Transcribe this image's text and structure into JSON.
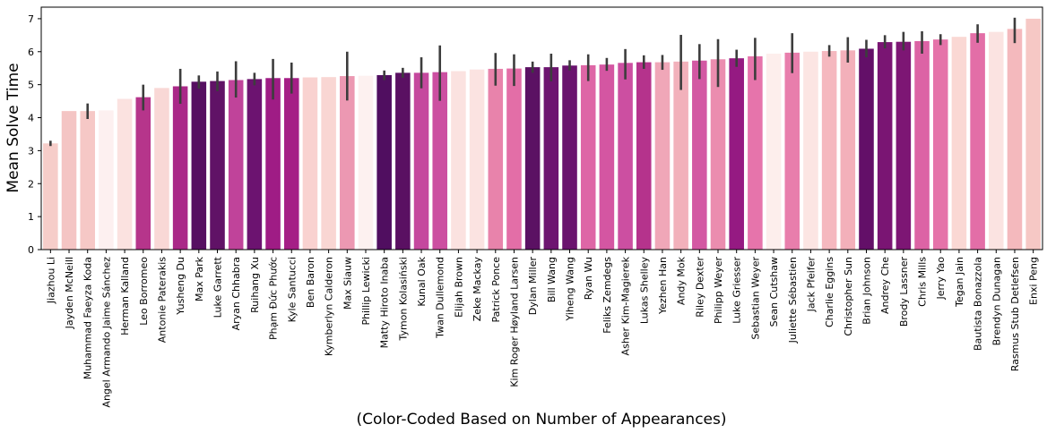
{
  "chart_data": {
    "type": "bar",
    "title": "",
    "xlabel": "(Color-Coded Based on Number of Appearances)",
    "ylabel": "Mean Solve Time",
    "ylim": [
      0,
      7.35
    ],
    "yticks": [
      0,
      1,
      2,
      3,
      4,
      5,
      6,
      7
    ],
    "grid": false,
    "legend": "none",
    "categories": [
      "Jiazhou Li",
      "Jayden McNeill",
      "Muhammad Faeyza Koda",
      "Angel Armando Jaime Sánchez",
      "Herman Kalland",
      "Leo Borromeo",
      "Antonie Paterakis",
      "Yusheng Du",
      "Max Park",
      "Luke Garrett",
      "Aryan Chhabra",
      "Ruihang Xu",
      "Phạm Đức Phước",
      "Kyle Santucci",
      "Ben Baron",
      "Kymberlyn Calderon",
      "Max Siauw",
      "Phillip Lewicki",
      "Matty Hiroto Inaba",
      "Tymon Kolasiński",
      "Kunal Oak",
      "Twan Dullemond",
      "Elijah Brown",
      "Zeke Mackay",
      "Patrick Ponce",
      "Kim Roger Høyland Larsen",
      "Dylan Miller",
      "Bill Wang",
      "Yiheng Wang",
      "Ryan Wu",
      "Feliks Zemdegs",
      "Asher Kim-Magierek",
      "Lukas Shelley",
      "Yezhen Han",
      "Andy Mok",
      "Riley Dexter",
      "Philipp Weyer",
      "Luke Griesser",
      "Sebastian Weyer",
      "Sean Cutshaw",
      "Juliette Sébastien",
      "Jack Pfeifer",
      "Charlie Eggins",
      "Christopher Sun",
      "Brian Johnson",
      "Andrey Che",
      "Brody Lassner",
      "Chris Mills",
      "Jerry Yao",
      "Tegan Jain",
      "Bautista Bonazzola",
      "Brendyn Dunagan",
      "Rasmus Stub Detlefsen",
      "Enxi Peng"
    ],
    "values": [
      3.22,
      4.2,
      4.2,
      4.22,
      4.57,
      4.62,
      4.9,
      4.95,
      5.09,
      5.11,
      5.14,
      5.17,
      5.2,
      5.2,
      5.22,
      5.23,
      5.26,
      5.27,
      5.29,
      5.36,
      5.36,
      5.38,
      5.41,
      5.46,
      5.48,
      5.49,
      5.53,
      5.53,
      5.58,
      5.59,
      5.61,
      5.66,
      5.68,
      5.68,
      5.7,
      5.73,
      5.77,
      5.8,
      5.86,
      5.94,
      5.97,
      6.0,
      6.02,
      6.04,
      6.09,
      6.29,
      6.3,
      6.32,
      6.37,
      6.45,
      6.56,
      6.6,
      6.69,
      7.0
    ],
    "error_low": [
      3.14,
      null,
      3.96,
      null,
      null,
      4.22,
      null,
      4.42,
      4.88,
      4.8,
      4.61,
      4.98,
      4.55,
      4.73,
      null,
      null,
      4.52,
      null,
      5.14,
      5.21,
      4.89,
      4.51,
      null,
      null,
      4.97,
      4.96,
      5.36,
      5.1,
      5.43,
      5.11,
      5.42,
      5.16,
      5.48,
      5.45,
      4.84,
      5.17,
      4.93,
      5.54,
      5.14,
      null,
      5.35,
      null,
      5.85,
      5.67,
      5.83,
      6.1,
      6.04,
      5.94,
      6.2,
      null,
      6.27,
      null,
      6.26,
      null
    ],
    "error_high": [
      3.3,
      null,
      4.43,
      null,
      null,
      5.0,
      null,
      5.48,
      5.28,
      5.4,
      5.71,
      5.36,
      5.78,
      5.67,
      null,
      null,
      6.0,
      null,
      5.43,
      5.51,
      5.83,
      6.19,
      null,
      null,
      5.96,
      5.92,
      5.7,
      5.94,
      5.74,
      5.92,
      5.81,
      6.08,
      5.89,
      5.9,
      6.51,
      6.23,
      6.38,
      6.06,
      6.42,
      null,
      6.56,
      null,
      6.2,
      6.44,
      6.36,
      6.5,
      6.6,
      6.62,
      6.53,
      null,
      6.83,
      null,
      7.03,
      null
    ],
    "colors": [
      "#f6cdc9",
      "#f4c5c4",
      "#f6c8c6",
      "#fdf0f0",
      "#fbe2e0",
      "#b6358b",
      "#f9d8d6",
      "#aa2888",
      "#561061",
      "#601266",
      "#c0439a",
      "#6c1370",
      "#9f1c85",
      "#a51f86",
      "#f9d2d0",
      "#f9d6d3",
      "#ec98b2",
      "#fdf1f0",
      "#500e60",
      "#5a1062",
      "#c5489e",
      "#cc4fa1",
      "#fbe2e0",
      "#fbe3e1",
      "#e883ab",
      "#e36ea7",
      "#5b1163",
      "#6d1470",
      "#6a146e",
      "#de66a6",
      "#d456a2",
      "#cc4fa1",
      "#b5338c",
      "#f0a7b8",
      "#f2b1bb",
      "#d358a3",
      "#eb8daf",
      "#951a82",
      "#e674ab",
      "#fdeeec",
      "#e87eac",
      "#fce5e3",
      "#f5b8bf",
      "#f3b0ba",
      "#630f68",
      "#7a1573",
      "#7d1674",
      "#dc63a5",
      "#e573a9",
      "#fad8d4",
      "#e36ea7",
      "#fbe3e1",
      "#f4b9bd",
      "#f6c8c5"
    ]
  }
}
